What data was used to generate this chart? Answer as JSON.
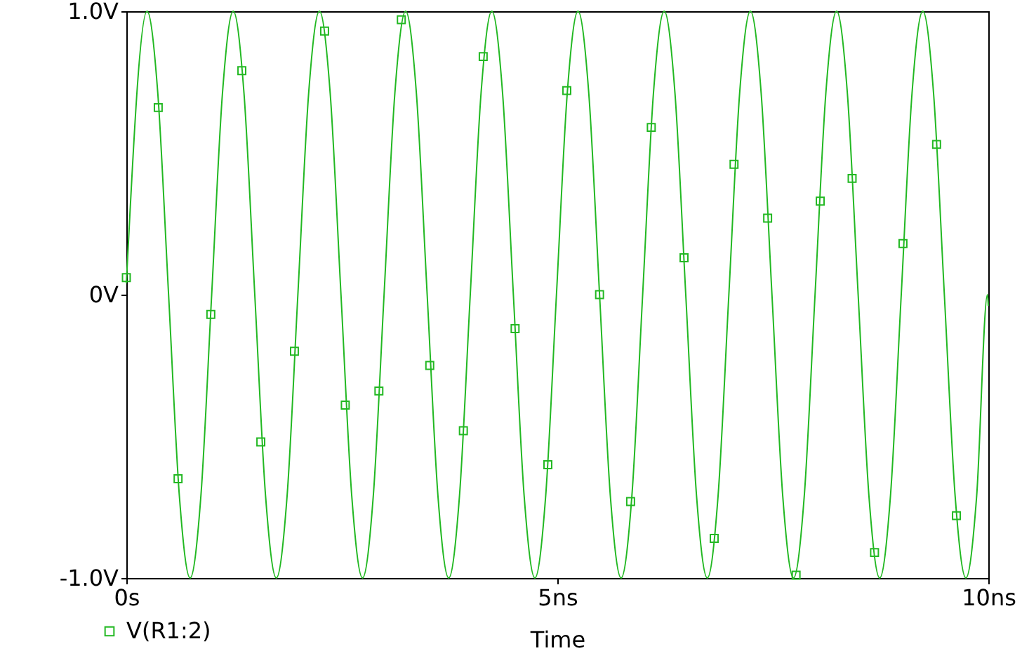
{
  "chart_data": {
    "type": "line",
    "xlabel": "Time",
    "xlim": [
      0,
      10
    ],
    "xticks": [
      {
        "value": 0,
        "label": "0s"
      },
      {
        "value": 5,
        "label": "5ns"
      },
      {
        "value": 10,
        "label": "10ns"
      }
    ],
    "ylim": [
      -1,
      1
    ],
    "yticks": [
      {
        "value": -1,
        "label": "-1.0V"
      },
      {
        "value": 0,
        "label": "0V"
      },
      {
        "value": 1,
        "label": "1.0V"
      }
    ],
    "grid": false,
    "legend": "bottom left",
    "series": [
      {
        "color": "#22b822",
        "x": [
          0,
          0.24,
          0.365,
          0.49,
          0.615,
          0.74,
          0.865,
          0.99,
          1.115,
          1.24,
          1.365,
          1.49,
          1.615,
          1.74,
          1.865,
          1.99,
          2.115,
          2.24,
          2.365,
          2.49,
          2.615,
          2.74,
          2.865,
          2.99,
          3.115,
          3.24,
          3.365,
          3.49,
          3.615,
          3.74,
          3.865,
          3.99,
          4.115,
          4.24,
          4.365,
          4.49,
          4.615,
          4.74,
          4.865,
          4.99,
          5.115,
          5.24,
          5.365,
          5.49,
          5.615,
          5.74,
          5.865,
          5.99,
          6.115,
          6.24,
          6.365,
          6.49,
          6.615,
          6.74,
          6.865,
          6.99,
          7.115,
          7.24,
          7.365,
          7.49,
          7.615,
          7.74,
          7.865,
          7.99,
          8.115,
          8.24,
          8.365,
          8.49,
          8.615,
          8.74,
          8.865,
          8.99,
          9.115,
          9.24,
          9.365,
          9.49,
          9.615,
          9.74,
          9.865,
          9.99,
          10
        ],
        "values": [
          0.04,
          1,
          0.71,
          0,
          -0.71,
          -1,
          -0.71,
          0,
          0.71,
          1,
          0.71,
          0,
          -0.71,
          -1,
          -0.71,
          0,
          0.71,
          1,
          0.71,
          0,
          -0.71,
          -1,
          -0.71,
          0,
          0.71,
          1,
          0.71,
          0,
          -0.71,
          -1,
          -0.71,
          0,
          0.71,
          1,
          0.71,
          0,
          -0.71,
          -1,
          -0.71,
          0,
          0.71,
          1,
          0.71,
          0,
          -0.71,
          -1,
          -0.71,
          0,
          0.71,
          1,
          0.71,
          0,
          -0.71,
          -1,
          -0.71,
          0,
          0.71,
          1,
          0.71,
          0,
          -0.71,
          -1,
          -0.71,
          0,
          0.71,
          1,
          0.71,
          0,
          -0.71,
          -1,
          -0.71,
          0,
          0.71,
          1,
          0.71,
          0,
          -0.71,
          -1,
          -0.71,
          0,
          -0.04
        ]
      },
      {
        "name": "V(R1:2)",
        "type": "scatter",
        "marker": "square",
        "color": "#22b822",
        "x": [
          0,
          0.37,
          0.6,
          0.98,
          1.34,
          1.56,
          1.95,
          2.3,
          2.54,
          2.93,
          3.19,
          3.52,
          3.91,
          4.14,
          4.51,
          4.89,
          5.11,
          5.49,
          5.85,
          6.09,
          6.47,
          6.82,
          7.05,
          7.44,
          7.77,
          8.05,
          8.42,
          8.68,
          9.01,
          9.4,
          9.63
        ],
        "values": [
          0.06,
          0.66,
          -0.65,
          -0.07,
          0.79,
          -0.52,
          -0.2,
          0.93,
          -0.39,
          -0.34,
          0.97,
          -0.25,
          -0.48,
          0.84,
          -0.12,
          -0.6,
          0.72,
          0,
          -0.73,
          0.59,
          0.13,
          -0.86,
          0.46,
          0.27,
          -0.99,
          0.33,
          0.41,
          -0.91,
          0.18,
          0.53,
          -0.78
        ]
      }
    ]
  }
}
